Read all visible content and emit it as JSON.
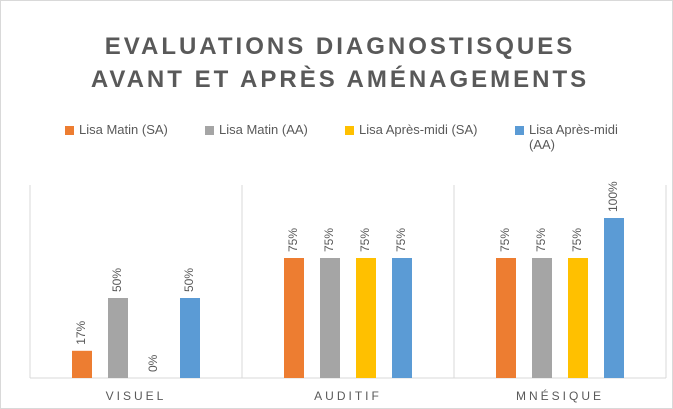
{
  "chart_data": {
    "type": "bar",
    "title": "EVALUATIONS DIAGNOSTISQUES AVANT ET APRÈS AMÉNAGEMENTS",
    "categories": [
      "VISUEL",
      "AUDITIF",
      "MNÉSIQUE"
    ],
    "series": [
      {
        "name": "Lisa Matin (SA)",
        "color": "#ed7d31",
        "values": [
          17,
          75,
          75
        ],
        "value_labels": [
          "17%",
          "75%",
          "75%"
        ]
      },
      {
        "name": "Lisa Matin (AA)",
        "color": "#a5a5a5",
        "values": [
          50,
          75,
          75
        ],
        "value_labels": [
          "50%",
          "75%",
          "75%"
        ]
      },
      {
        "name": "Lisa Après-midi (SA)",
        "color": "#ffc000",
        "values": [
          0,
          75,
          75
        ],
        "value_labels": [
          "0%",
          "75%",
          "75%"
        ]
      },
      {
        "name": "Lisa Après-midi (AA)",
        "color": "#5b9bd5",
        "values": [
          50,
          75,
          100
        ],
        "value_labels": [
          "50%",
          "75%",
          "100%"
        ]
      }
    ],
    "legend": "top"
  }
}
